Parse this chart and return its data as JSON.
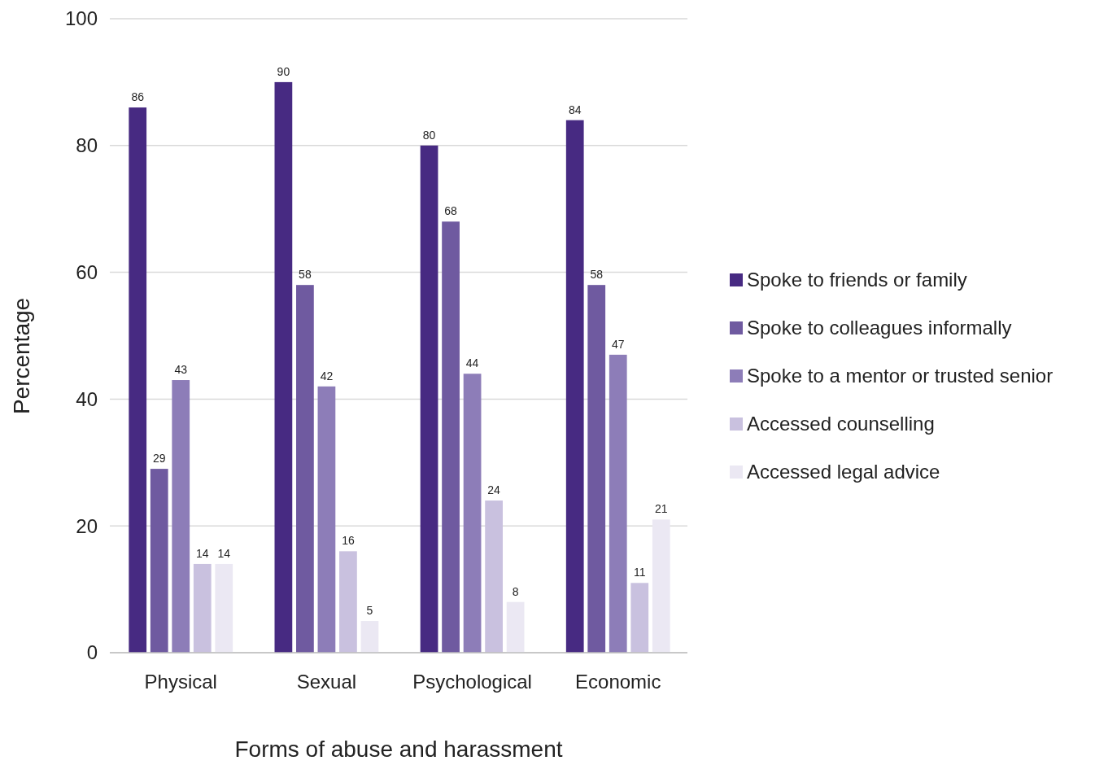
{
  "chart_data": {
    "type": "bar",
    "xlabel": "Forms of abuse and harassment",
    "ylabel": "Percentage",
    "categories": [
      "Physical",
      "Sexual",
      "Psychological",
      "Economic"
    ],
    "series": [
      {
        "name": "Spoke to friends or family",
        "color": "#472a82",
        "values": [
          86,
          90,
          80,
          84
        ]
      },
      {
        "name": "Spoke to colleagues informally",
        "color": "#6f5aa0",
        "values": [
          29,
          58,
          68,
          58
        ]
      },
      {
        "name": "Spoke to a mentor or trusted senior",
        "color": "#8d7db8",
        "values": [
          43,
          42,
          44,
          47
        ]
      },
      {
        "name": "Accessed counselling",
        "color": "#c9c1df",
        "values": [
          14,
          16,
          24,
          11
        ]
      },
      {
        "name": "Accessed legal advice",
        "color": "#ebe8f3",
        "values": [
          14,
          5,
          8,
          21
        ]
      }
    ],
    "ylim": [
      0,
      100
    ],
    "yticks": [
      0,
      20,
      40,
      60,
      80,
      100
    ],
    "grid": "y",
    "legend": "right",
    "data_labels": true
  }
}
